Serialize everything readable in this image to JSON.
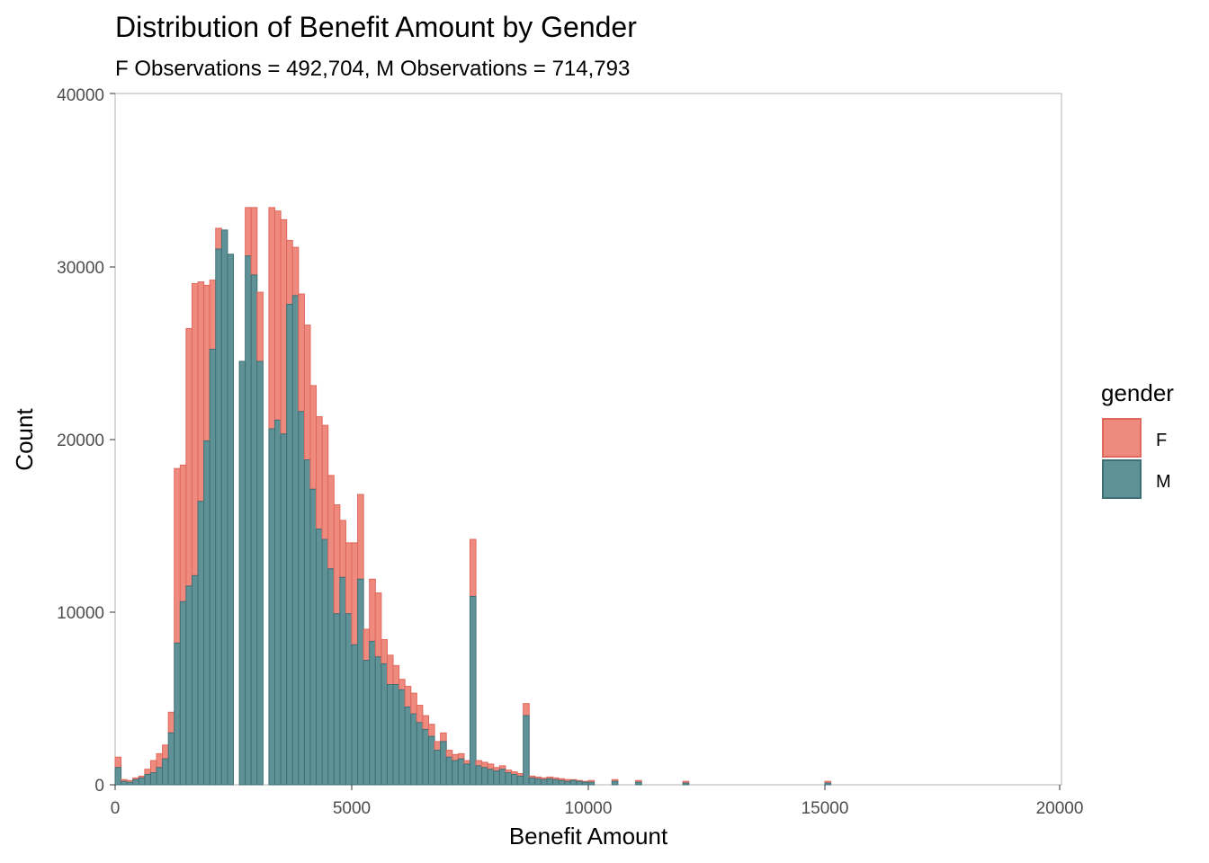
{
  "chart_data": {
    "type": "bar",
    "stacked": true,
    "title": "Distribution of Benefit Amount by Gender",
    "subtitle": "F Observations = 492,704, M Observations = 714,793",
    "xlabel": "Benefit Amount",
    "ylabel": "Count",
    "xlim": [
      0,
      20000
    ],
    "ylim": [
      0,
      40000
    ],
    "x_ticks": [
      "0",
      "5000",
      "10000",
      "15000",
      "20000"
    ],
    "y_ticks": [
      "0",
      "10000",
      "20000",
      "30000",
      "40000"
    ],
    "grid": false,
    "legend": {
      "title": "gender",
      "position": "right"
    },
    "bin_width": 125,
    "x": [
      0,
      125,
      250,
      375,
      500,
      625,
      750,
      875,
      1000,
      1125,
      1250,
      1375,
      1500,
      1625,
      1750,
      1875,
      2000,
      2125,
      2250,
      2375,
      2500,
      2625,
      2750,
      2875,
      3000,
      3125,
      3250,
      3375,
      3500,
      3625,
      3750,
      3875,
      4000,
      4125,
      4250,
      4375,
      4500,
      4625,
      4750,
      4875,
      5000,
      5125,
      5250,
      5375,
      5500,
      5625,
      5750,
      5875,
      6000,
      6125,
      6250,
      6375,
      6500,
      6625,
      6750,
      6875,
      7000,
      7125,
      7250,
      7375,
      7500,
      7625,
      7750,
      7875,
      8000,
      8125,
      8250,
      8375,
      8500,
      8625,
      8750,
      8875,
      9000,
      9125,
      9250,
      9375,
      9500,
      9625,
      9750,
      9875,
      10000,
      10500,
      11000,
      12000,
      15000
    ],
    "series": [
      {
        "name": "M",
        "color": "#5f9297",
        "edge": "#3f6f75",
        "values": [
          1000,
          200,
          150,
          300,
          400,
          600,
          700,
          1000,
          1500,
          3000,
          8200,
          10600,
          11500,
          12100,
          16400,
          19900,
          25200,
          31000,
          32100,
          30700,
          0,
          24500,
          30600,
          29500,
          24500,
          0,
          20600,
          21100,
          20300,
          27800,
          28300,
          21600,
          18800,
          17100,
          14800,
          14200,
          12500,
          9900,
          12000,
          9900,
          8100,
          11900,
          7200,
          8300,
          7400,
          7000,
          5800,
          5800,
          5500,
          4500,
          4100,
          3600,
          3200,
          2800,
          2000,
          2500,
          1600,
          1400,
          1500,
          1200,
          10900,
          1100,
          1000,
          900,
          800,
          900,
          700,
          600,
          500,
          4000,
          400,
          350,
          300,
          350,
          300,
          250,
          200,
          250,
          200,
          150,
          150,
          200,
          150,
          100,
          100
        ]
      },
      {
        "name": "F",
        "color": "#ef8a7e",
        "edge": "#e0675b",
        "values": [
          600,
          100,
          100,
          100,
          100,
          300,
          700,
          800,
          800,
          1200,
          10100,
          7900,
          14900,
          16900,
          12700,
          9000,
          4000,
          1200,
          0,
          0,
          0,
          0,
          2800,
          3900,
          4000,
          0,
          12800,
          12100,
          12400,
          3700,
          2800,
          6800,
          7800,
          6000,
          6500,
          6600,
          5400,
          6300,
          3300,
          4100,
          5900,
          4900,
          1800,
          3600,
          3700,
          1400,
          1700,
          1100,
          600,
          1200,
          1200,
          1000,
          800,
          700,
          500,
          500,
          400,
          350,
          300,
          200,
          3300,
          300,
          300,
          300,
          200,
          200,
          150,
          150,
          150,
          700,
          100,
          100,
          100,
          100,
          100,
          100,
          100,
          50,
          50,
          50,
          100,
          100,
          100,
          100,
          100
        ]
      }
    ]
  }
}
